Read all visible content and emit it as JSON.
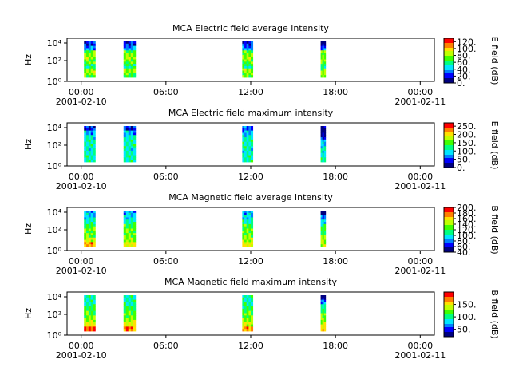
{
  "colors": {
    "palette": [
      "#00007f",
      "#0000ff",
      "#0080ff",
      "#00e5ff",
      "#00ff80",
      "#40ff00",
      "#c0ff00",
      "#ffe000",
      "#ff8000",
      "#ff0000"
    ]
  },
  "chart_data": [
    {
      "type": "heatmap",
      "title": "MCA  Electric field average intensity",
      "ylabel": "Hz",
      "yscale": "log",
      "yticks": [
        "10⁰",
        "10²",
        "10⁴"
      ],
      "xticks": [
        "00:00",
        "06:00",
        "12:00",
        "18:00",
        "00:00"
      ],
      "x_date_start": "2001-02-10",
      "x_date_end": "2001-02-11",
      "colorbar": {
        "label": "E field (dB)",
        "range": [
          0,
          130
        ],
        "ticks": [
          "0.",
          "20.",
          "40.",
          "60.",
          "80.",
          "100.",
          "120."
        ]
      },
      "x_hours_range": [
        -1,
        25
      ],
      "segments": [
        {
          "start_h": 0.2,
          "end_h": 1.0,
          "dense": false,
          "levels": [
            0.15,
            0.25,
            0.55,
            0.6,
            0.55,
            0.45,
            0.6,
            0.55
          ]
        },
        {
          "start_h": 3.0,
          "end_h": 3.85,
          "dense": false,
          "levels": [
            0.15,
            0.25,
            0.55,
            0.6,
            0.55,
            0.45,
            0.6,
            0.5
          ]
        },
        {
          "start_h": 11.4,
          "end_h": 12.15,
          "dense": false,
          "levels": [
            0.15,
            0.25,
            0.55,
            0.6,
            0.55,
            0.45,
            0.6,
            0.55
          ]
        },
        {
          "start_h": 16.95,
          "end_h": 17.3,
          "dense": true,
          "levels": [
            0.0,
            0.2,
            0.55,
            0.6,
            0.55,
            0.45,
            0.55,
            0.6
          ]
        }
      ]
    },
    {
      "type": "heatmap",
      "title": "MCA  Electric field maximum intensity",
      "ylabel": "Hz",
      "yscale": "log",
      "yticks": [
        "10⁰",
        "10²",
        "10⁴"
      ],
      "xticks": [
        "00:00",
        "06:00",
        "12:00",
        "18:00",
        "00:00"
      ],
      "x_date_start": "2001-02-10",
      "x_date_end": "2001-02-11",
      "colorbar": {
        "label": "E field (dB)",
        "range": [
          0,
          270
        ],
        "ticks": [
          "0.",
          "50.",
          "100.",
          "150.",
          "200.",
          "250."
        ]
      },
      "x_hours_range": [
        -1,
        25
      ],
      "segments": [
        {
          "start_h": 0.2,
          "end_h": 1.0,
          "dense": false,
          "levels": [
            0.15,
            0.3,
            0.38,
            0.4,
            0.4,
            0.38,
            0.4,
            0.42
          ]
        },
        {
          "start_h": 3.0,
          "end_h": 3.85,
          "dense": false,
          "levels": [
            0.15,
            0.3,
            0.38,
            0.4,
            0.4,
            0.38,
            0.4,
            0.42
          ]
        },
        {
          "start_h": 11.4,
          "end_h": 12.15,
          "dense": false,
          "levels": [
            0.2,
            0.3,
            0.38,
            0.4,
            0.4,
            0.38,
            0.4,
            0.42
          ]
        },
        {
          "start_h": 16.95,
          "end_h": 17.3,
          "dense": true,
          "levels": [
            0.0,
            0.05,
            0.1,
            0.3,
            0.35,
            0.38,
            0.4,
            0.42
          ]
        }
      ]
    },
    {
      "type": "heatmap",
      "title": "MCA  Magnetic field average intensity",
      "ylabel": "Hz",
      "yscale": "log",
      "yticks": [
        "10⁰",
        "10²",
        "10⁴"
      ],
      "xticks": [
        "00:00",
        "06:00",
        "12:00",
        "18:00",
        "00:00"
      ],
      "x_date_start": "2001-02-10",
      "x_date_end": "2001-02-11",
      "colorbar": {
        "label": "B field (dB)",
        "range": [
          40,
          200
        ],
        "ticks": [
          "40.",
          "60.",
          "80.",
          "100.",
          "120.",
          "140.",
          "160.",
          "180.",
          "200."
        ]
      },
      "x_hours_range": [
        -1,
        25
      ],
      "segments": [
        {
          "start_h": 0.2,
          "end_h": 1.0,
          "dense": false,
          "levels": [
            0.3,
            0.35,
            0.4,
            0.5,
            0.55,
            0.55,
            0.65,
            0.8
          ]
        },
        {
          "start_h": 3.0,
          "end_h": 3.85,
          "dense": false,
          "levels": [
            0.3,
            0.35,
            0.4,
            0.5,
            0.55,
            0.55,
            0.6,
            0.7
          ]
        },
        {
          "start_h": 11.4,
          "end_h": 12.15,
          "dense": false,
          "levels": [
            0.3,
            0.35,
            0.4,
            0.5,
            0.55,
            0.55,
            0.6,
            0.7
          ]
        },
        {
          "start_h": 16.95,
          "end_h": 17.3,
          "dense": true,
          "levels": [
            0.0,
            0.2,
            0.35,
            0.45,
            0.5,
            0.55,
            0.6,
            0.65
          ]
        }
      ]
    },
    {
      "type": "heatmap",
      "title": "MCA  Magnetic field maximum intensity",
      "ylabel": "Hz",
      "yscale": "log",
      "yticks": [
        "10⁰",
        "10²",
        "10⁴"
      ],
      "xticks": [
        "00:00",
        "06:00",
        "12:00",
        "18:00",
        "00:00"
      ],
      "x_date_start": "2001-02-10",
      "x_date_end": "2001-02-11",
      "colorbar": {
        "label": "B field (dB)",
        "range": [
          20,
          200
        ],
        "ticks": [
          "50.",
          "100.",
          "150."
        ]
      },
      "x_hours_range": [
        -1,
        25
      ],
      "segments": [
        {
          "start_h": 0.2,
          "end_h": 1.0,
          "dense": false,
          "levels": [
            0.4,
            0.4,
            0.45,
            0.5,
            0.55,
            0.6,
            0.7,
            0.9
          ]
        },
        {
          "start_h": 3.0,
          "end_h": 3.85,
          "dense": false,
          "levels": [
            0.4,
            0.4,
            0.45,
            0.5,
            0.55,
            0.6,
            0.7,
            0.85
          ]
        },
        {
          "start_h": 11.4,
          "end_h": 12.15,
          "dense": false,
          "levels": [
            0.4,
            0.4,
            0.45,
            0.5,
            0.55,
            0.6,
            0.65,
            0.8
          ]
        },
        {
          "start_h": 16.95,
          "end_h": 17.3,
          "dense": true,
          "levels": [
            0.0,
            0.25,
            0.4,
            0.5,
            0.55,
            0.6,
            0.65,
            0.75
          ]
        }
      ]
    }
  ]
}
